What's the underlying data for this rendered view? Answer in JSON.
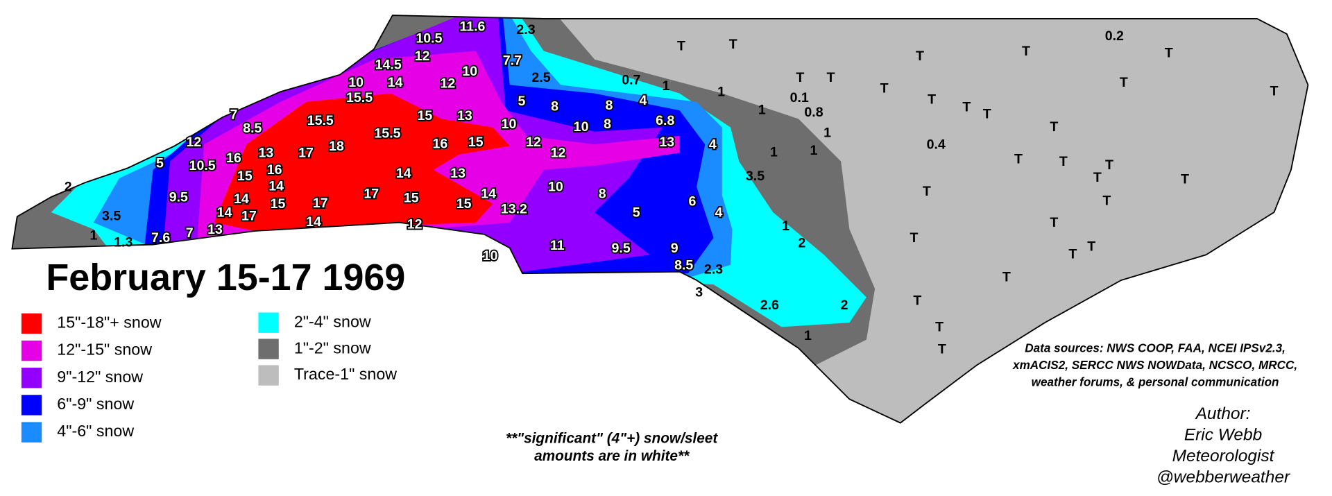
{
  "title": "February 15-17 1969",
  "legend": [
    {
      "label": "15\"-18\"+ snow",
      "color": "#ff0000"
    },
    {
      "label": "12\"-15\" snow",
      "color": "#e600e6"
    },
    {
      "label": "9\"-12\" snow",
      "color": "#9400ff"
    },
    {
      "label": "6\"-9\" snow",
      "color": "#0000ff"
    },
    {
      "label": "4\"-6\" snow",
      "color": "#1a8cff"
    },
    {
      "label": "2\"-4\" snow",
      "color": "#00ffff"
    },
    {
      "label": "1\"-2\" snow",
      "color": "#6e6e6e"
    },
    {
      "label": "Trace-1\" snow",
      "color": "#bdbdbd"
    }
  ],
  "significant_amounts": [
    "11.6",
    "10.5",
    "12",
    "14.5",
    "10",
    "12",
    "10",
    "14",
    "15.5",
    "7",
    "8.5",
    "15",
    "13",
    "15.5",
    "15.5",
    "16",
    "15",
    "12",
    "18",
    "17",
    "13",
    "16",
    "10.5",
    "5",
    "15",
    "16",
    "14",
    "13",
    "14",
    "17",
    "15",
    "15",
    "14",
    "9.5",
    "14",
    "15",
    "17",
    "13.2",
    "14",
    "17",
    "14",
    "12",
    "13",
    "7",
    "7.6",
    "10",
    "10",
    "8",
    "12",
    "12",
    "10",
    "10",
    "8",
    "8",
    "8",
    "5",
    "4",
    "6.8",
    "13",
    "4",
    "5",
    "6",
    "4",
    "11",
    "9.5",
    "9",
    "8.5",
    "7.7"
  ],
  "other_amounts": [
    "2.3",
    "2.5",
    "0.7",
    "1",
    "1",
    "1",
    "0.1",
    "0.8",
    "1",
    "1",
    "1",
    "3.5",
    "1",
    "2",
    "2.3",
    "3",
    "2.6",
    "2",
    "1",
    "2",
    "3.5",
    "1",
    "1.3",
    "0.2",
    "0.4"
  ],
  "trace_marks": [
    "T",
    "T",
    "T",
    "T",
    "T",
    "T",
    "T",
    "T",
    "T",
    "T",
    "T",
    "T",
    "T",
    "T",
    "T",
    "T",
    "T",
    "T",
    "T",
    "T",
    "T",
    "T",
    "T",
    "T",
    "T",
    "T",
    "T",
    "T",
    "T"
  ],
  "note": [
    "**\"significant\" (4\"+) snow/sleet",
    "amounts are in white**"
  ],
  "sources": [
    "Data sources: NWS COOP, FAA, NCEI IPSv2.3,",
    "xmACIS2, SERCC NWS NOWData, NCSCO, MRCC,",
    "weather forums, & personal communication"
  ],
  "author": [
    "Author:",
    "Eric Webb",
    "Meteorologist",
    "@webberweather"
  ]
}
